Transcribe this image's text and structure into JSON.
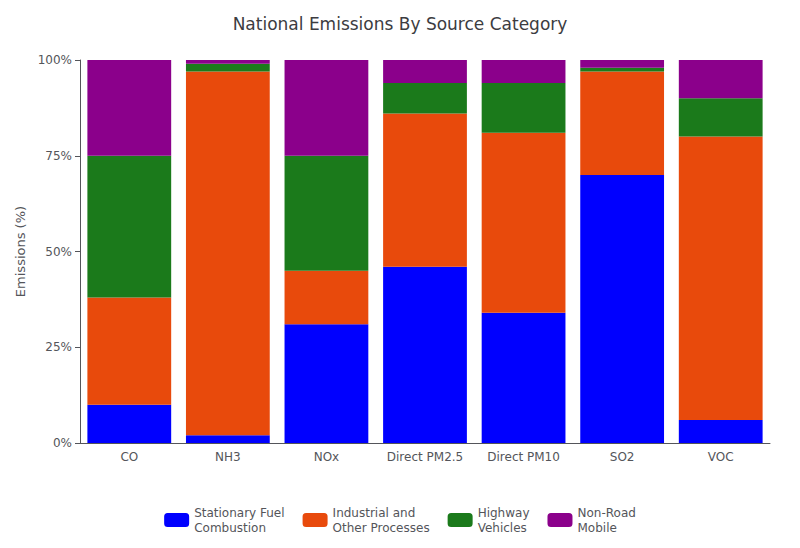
{
  "chart_data": {
    "type": "bar",
    "title": "National Emissions By Source Category",
    "ylabel": "Emissions (%)",
    "categories": [
      "CO",
      "NH3",
      "NOx",
      "Direct PM2.5",
      "Direct PM10",
      "SO2",
      "VOC"
    ],
    "series": [
      {
        "name": "Stationary Fuel\nCombustion",
        "color": "#0000FF",
        "values": [
          10,
          2,
          31,
          46,
          34,
          70,
          6
        ]
      },
      {
        "name": "Industrial and\nOther Processes",
        "color": "#E84A0C",
        "values": [
          28,
          95,
          14,
          40,
          47,
          27,
          74
        ]
      },
      {
        "name": "Highway\nVehicles",
        "color": "#1B7A1B",
        "values": [
          37,
          2,
          30,
          8,
          13,
          1,
          10
        ]
      },
      {
        "name": "Non-Road\nMobile",
        "color": "#8B008B",
        "values": [
          25,
          1,
          25,
          6,
          6,
          2,
          10
        ]
      }
    ],
    "stacked": true,
    "ylim": [
      0,
      100
    ],
    "yticks": [
      {
        "value": 0,
        "label": "0%"
      },
      {
        "value": 25,
        "label": "25%"
      },
      {
        "value": 50,
        "label": "50%"
      },
      {
        "value": 75,
        "label": "75%"
      },
      {
        "value": 100,
        "label": "100%"
      }
    ],
    "grid": false,
    "legend": "bottom"
  }
}
